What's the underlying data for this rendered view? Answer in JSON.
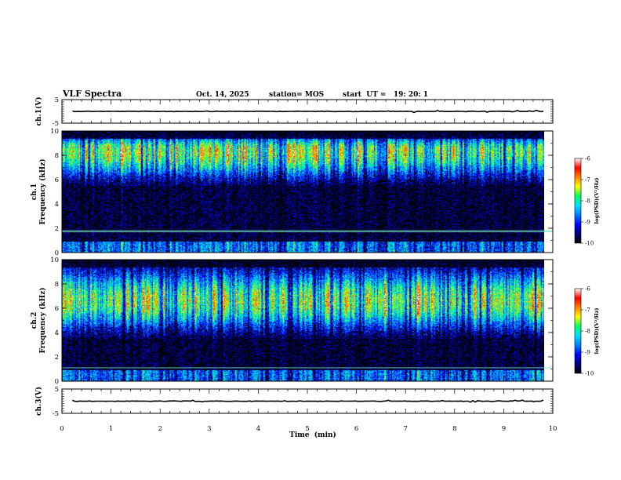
{
  "header": {
    "title": "VLF Spectra",
    "date": "Oct. 14, 2025",
    "station": "station= MOS",
    "start_time": "start  UT =   19: 20: 1"
  },
  "chart_data": [
    {
      "id": "ch1_voltage",
      "type": "line",
      "ylabel": "ch.1(V)",
      "ylim": [
        -5,
        5
      ],
      "yticks": [
        "5",
        "-5"
      ],
      "xlim": [
        0,
        10
      ],
      "trace_level": 0
    },
    {
      "id": "ch1_spectrogram",
      "type": "heatmap",
      "ylabel_line1": "ch.1",
      "ylabel_line2": "Frequency (kHz)",
      "ylim": [
        0,
        10
      ],
      "yticks": [
        "0",
        "2",
        "4",
        "6",
        "8",
        "10"
      ],
      "xlim": [
        0,
        10
      ],
      "data_end_min": 9.82,
      "band_kHz": [
        5.5,
        10
      ],
      "band_peak_kHz": 8.4,
      "hline_kHz": [
        1.7,
        1.8
      ],
      "colorbar": {
        "label": "log(PSD)(V²/Hz)",
        "range": [
          -10,
          -6
        ],
        "ticks": [
          "-6",
          "-7",
          "-8",
          "-9",
          "-10"
        ]
      }
    },
    {
      "id": "ch2_spectrogram",
      "type": "heatmap",
      "ylabel_line1": "ch.2",
      "ylabel_line2": "Frequency (kHz)",
      "ylim": [
        0,
        10
      ],
      "yticks": [
        "0",
        "2",
        "4",
        "6",
        "8",
        "10"
      ],
      "xlim": [
        0,
        10
      ],
      "data_end_min": 9.82,
      "band_kHz": [
        3.5,
        10
      ],
      "band_peak_kHz": 6.6,
      "hline_kHz": [
        1.1
      ],
      "colorbar": {
        "label": "log(PSD)(V²/Hz)",
        "range": [
          -10,
          -6
        ],
        "ticks": [
          "-6",
          "-7",
          "-8",
          "-9",
          "-10"
        ]
      }
    },
    {
      "id": "ch3_voltage",
      "type": "line",
      "ylabel": "ch.3(V)",
      "ylim": [
        -5,
        5
      ],
      "yticks": [
        "5",
        "-5"
      ],
      "xlim": [
        0,
        10
      ],
      "trace_level": 0
    }
  ],
  "xaxis": {
    "label": "Time  (min)",
    "ticks": [
      "0",
      "1",
      "2",
      "3",
      "4",
      "5",
      "6",
      "7",
      "8",
      "9",
      "10"
    ]
  },
  "colors": {
    "colormap": [
      "#00007a",
      "#0000ff",
      "#0080ff",
      "#00e0ff",
      "#00ff60",
      "#ffff00",
      "#ff8000",
      "#ff0000",
      "#ffffff"
    ],
    "hline": "#6fe0b8"
  }
}
